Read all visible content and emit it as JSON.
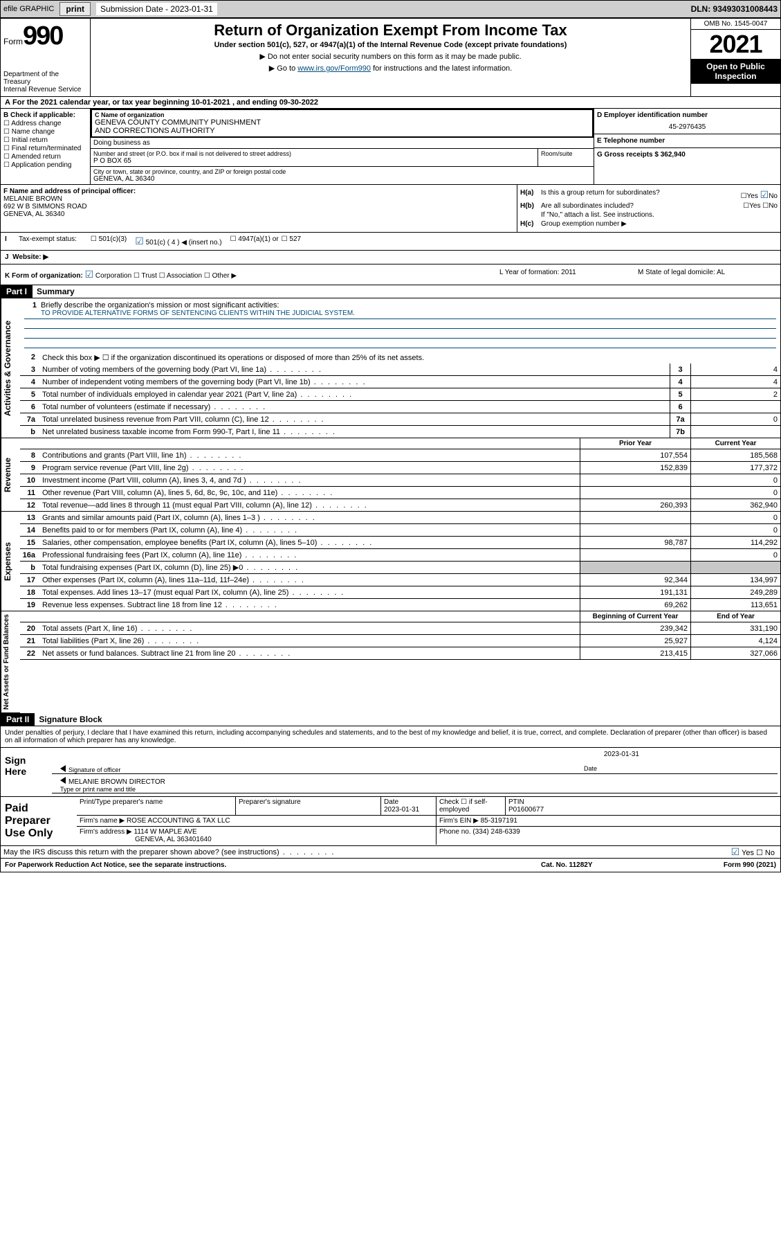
{
  "topbar": {
    "efile": "efile GRAPHIC",
    "print": "print",
    "sub_label": "Submission Date - 2023-01-31",
    "dln": "DLN: 93493031008443"
  },
  "header": {
    "form": "Form",
    "num": "990",
    "dept": "Department of the Treasury",
    "irs": "Internal Revenue Service",
    "title": "Return of Organization Exempt From Income Tax",
    "sub": "Under section 501(c), 527, or 4947(a)(1) of the Internal Revenue Code (except private foundations)",
    "note1": "▶ Do not enter social security numbers on this form as it may be made public.",
    "note2_pre": "▶ Go to ",
    "note2_link": "www.irs.gov/Form990",
    "note2_post": " for instructions and the latest information.",
    "omb": "OMB No. 1545-0047",
    "year": "2021",
    "open": "Open to Public Inspection"
  },
  "row_a": "For the 2021 calendar year, or tax year beginning 10-01-2021   , and ending 09-30-2022",
  "section_b": {
    "label": "B Check if applicable:",
    "items": [
      "Address change",
      "Name change",
      "Initial return",
      "Final return/terminated",
      "Amended return",
      "Application pending"
    ]
  },
  "section_c": {
    "name_lbl": "C Name of organization",
    "name1": "GENEVA COUNTY COMMUNITY PUNISHMENT",
    "name2": "AND CORRECTIONS AUTHORITY",
    "dba": "Doing business as",
    "street_lbl": "Number and street (or P.O. box if mail is not delivered to street address)",
    "street": "P O BOX 65",
    "room_lbl": "Room/suite",
    "city_lbl": "City or town, state or province, country, and ZIP or foreign postal code",
    "city": "GENEVA, AL  36340"
  },
  "section_d": {
    "lbl": "D Employer identification number",
    "val": "45-2976435"
  },
  "section_e": {
    "lbl": "E Telephone number"
  },
  "section_g": {
    "lbl": "G Gross receipts $",
    "val": "362,940"
  },
  "section_f": {
    "lbl": "F Name and address of principal officer:",
    "name": "MELANIE BROWN",
    "addr1": "692 W B SIMMONS ROAD",
    "addr2": "GENEVA, AL  36340"
  },
  "section_h": {
    "a_lbl": "H(a)",
    "a_txt": "Is this a group return for subordinates?",
    "b_lbl": "H(b)",
    "b_txt": "Are all subordinates included?",
    "note": "If \"No,\" attach a list. See instructions.",
    "c_lbl": "H(c)",
    "c_txt": "Group exemption number ▶",
    "yes": "Yes",
    "no": "No"
  },
  "row_i": {
    "lbl": "Tax-exempt status:",
    "o1": "501(c)(3)",
    "o2": "501(c) ( 4 ) ◀ (insert no.)",
    "o3": "4947(a)(1) or",
    "o4": "527"
  },
  "row_j": "Website: ▶",
  "row_k": {
    "k": "K Form of organization:",
    "opts": [
      "Corporation",
      "Trust",
      "Association",
      "Other ▶"
    ],
    "l": "L Year of formation: 2011",
    "m": "M State of legal domicile: AL"
  },
  "part1": {
    "hdr": "Part I",
    "title": "Summary"
  },
  "vtabs": {
    "gov": "Activities & Governance",
    "rev": "Revenue",
    "exp": "Expenses",
    "net": "Net Assets or Fund Balances"
  },
  "mission": {
    "q": "Briefly describe the organization's mission or most significant activities:",
    "a": "TO PROVIDE ALTERNATIVE FORMS OF SENTENCING CLIENTS WITHIN THE JUDICIAL SYSTEM."
  },
  "line2": "Check this box ▶ ☐  if the organization discontinued its operations or disposed of more than 25% of its net assets.",
  "lines_gov": [
    {
      "n": "3",
      "t": "Number of voting members of the governing body (Part VI, line 1a)",
      "nc": "3",
      "v": "4"
    },
    {
      "n": "4",
      "t": "Number of independent voting members of the governing body (Part VI, line 1b)",
      "nc": "4",
      "v": "4"
    },
    {
      "n": "5",
      "t": "Total number of individuals employed in calendar year 2021 (Part V, line 2a)",
      "nc": "5",
      "v": "2"
    },
    {
      "n": "6",
      "t": "Total number of volunteers (estimate if necessary)",
      "nc": "6",
      "v": ""
    },
    {
      "n": "7a",
      "t": "Total unrelated business revenue from Part VIII, column (C), line 12",
      "nc": "7a",
      "v": "0"
    },
    {
      "n": "b",
      "t": "Net unrelated business taxable income from Form 990-T, Part I, line 11",
      "nc": "7b",
      "v": ""
    }
  ],
  "col_hdrs": {
    "py": "Prior Year",
    "cy": "Current Year",
    "bcy": "Beginning of Current Year",
    "eoy": "End of Year"
  },
  "lines_rev": [
    {
      "n": "8",
      "t": "Contributions and grants (Part VIII, line 1h)",
      "py": "107,554",
      "cy": "185,568"
    },
    {
      "n": "9",
      "t": "Program service revenue (Part VIII, line 2g)",
      "py": "152,839",
      "cy": "177,372"
    },
    {
      "n": "10",
      "t": "Investment income (Part VIII, column (A), lines 3, 4, and 7d )",
      "py": "",
      "cy": "0"
    },
    {
      "n": "11",
      "t": "Other revenue (Part VIII, column (A), lines 5, 6d, 8c, 9c, 10c, and 11e)",
      "py": "",
      "cy": "0"
    },
    {
      "n": "12",
      "t": "Total revenue—add lines 8 through 11 (must equal Part VIII, column (A), line 12)",
      "py": "260,393",
      "cy": "362,940"
    }
  ],
  "lines_exp": [
    {
      "n": "13",
      "t": "Grants and similar amounts paid (Part IX, column (A), lines 1–3 )",
      "py": "",
      "cy": "0"
    },
    {
      "n": "14",
      "t": "Benefits paid to or for members (Part IX, column (A), line 4)",
      "py": "",
      "cy": "0"
    },
    {
      "n": "15",
      "t": "Salaries, other compensation, employee benefits (Part IX, column (A), lines 5–10)",
      "py": "98,787",
      "cy": "114,292"
    },
    {
      "n": "16a",
      "t": "Professional fundraising fees (Part IX, column (A), line 11e)",
      "py": "",
      "cy": "0"
    },
    {
      "n": "b",
      "t": "Total fundraising expenses (Part IX, column (D), line 25) ▶0",
      "py": "shade",
      "cy": "shade"
    },
    {
      "n": "17",
      "t": "Other expenses (Part IX, column (A), lines 11a–11d, 11f–24e)",
      "py": "92,344",
      "cy": "134,997"
    },
    {
      "n": "18",
      "t": "Total expenses. Add lines 13–17 (must equal Part IX, column (A), line 25)",
      "py": "191,131",
      "cy": "249,289"
    },
    {
      "n": "19",
      "t": "Revenue less expenses. Subtract line 18 from line 12",
      "py": "69,262",
      "cy": "113,651"
    }
  ],
  "lines_net": [
    {
      "n": "20",
      "t": "Total assets (Part X, line 16)",
      "py": "239,342",
      "cy": "331,190"
    },
    {
      "n": "21",
      "t": "Total liabilities (Part X, line 26)",
      "py": "25,927",
      "cy": "4,124"
    },
    {
      "n": "22",
      "t": "Net assets or fund balances. Subtract line 21 from line 20",
      "py": "213,415",
      "cy": "327,066"
    }
  ],
  "part2": {
    "hdr": "Part II",
    "title": "Signature Block"
  },
  "decl": "Under penalties of perjury, I declare that I have examined this return, including accompanying schedules and statements, and to the best of my knowledge and belief, it is true, correct, and complete. Declaration of preparer (other than officer) is based on all information of which preparer has any knowledge.",
  "sign": {
    "here": "Sign Here",
    "sig_lbl": "Signature of officer",
    "date": "2023-01-31",
    "date_lbl": "Date",
    "name": "MELANIE BROWN  DIRECTOR",
    "name_lbl": "Type or print name and title"
  },
  "prep": {
    "title": "Paid Preparer Use Only",
    "h1": "Print/Type preparer's name",
    "h2": "Preparer's signature",
    "h3": "Date",
    "h3v": "2023-01-31",
    "h4": "Check ☐ if self-employed",
    "h5": "PTIN",
    "h5v": "P01600677",
    "firm_lbl": "Firm's name    ▶",
    "firm": "ROSE ACCOUNTING & TAX LLC",
    "ein_lbl": "Firm's EIN ▶",
    "ein": "85-3197191",
    "addr_lbl": "Firm's address ▶",
    "addr1": "1114 W MAPLE AVE",
    "addr2": "GENEVA, AL  363401640",
    "phone_lbl": "Phone no.",
    "phone": "(334) 248-6339"
  },
  "discuss": "May the IRS discuss this return with the preparer shown above? (see instructions)",
  "footer": {
    "pra": "For Paperwork Reduction Act Notice, see the separate instructions.",
    "cat": "Cat. No. 11282Y",
    "form": "Form 990 (2021)"
  }
}
